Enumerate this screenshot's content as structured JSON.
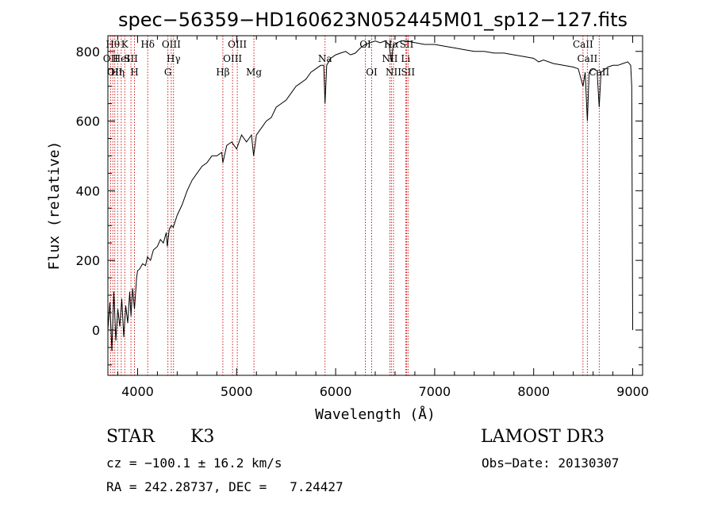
{
  "chart_data": {
    "type": "line",
    "title": "spec−56359−HD160623N052445M01_sp12−127.fits",
    "xlabel": "Wavelength (Å)",
    "ylabel": "Flux (relative)",
    "xlim": [
      3700,
      9100
    ],
    "ylim": [
      -130,
      845
    ],
    "x_ticks": [
      4000,
      5000,
      6000,
      7000,
      8000,
      9000
    ],
    "y_ticks": [
      0,
      200,
      400,
      600,
      800
    ],
    "grid": false,
    "series": [
      {
        "x": [
          3700,
          3720,
          3740,
          3760,
          3780,
          3800,
          3820,
          3840,
          3860,
          3880,
          3900,
          3920,
          3933,
          3950,
          3968,
          3990,
          4000,
          4020,
          4050,
          4080,
          4100,
          4130,
          4160,
          4200,
          4230,
          4260,
          4290,
          4300,
          4320,
          4340,
          4360,
          4400,
          4450,
          4500,
          4550,
          4600,
          4650,
          4700,
          4750,
          4800,
          4850,
          4861,
          4900,
          4950,
          5000,
          5050,
          5100,
          5150,
          5172,
          5200,
          5250,
          5300,
          5350,
          5400,
          5450,
          5500,
          5550,
          5600,
          5650,
          5700,
          5750,
          5800,
          5850,
          5880,
          5893,
          5910,
          5950,
          6000,
          6050,
          6100,
          6150,
          6200,
          6250,
          6300,
          6350,
          6400,
          6450,
          6500,
          6540,
          6563,
          6580,
          6620,
          6660,
          6700,
          6750,
          6800,
          6900,
          7000,
          7100,
          7200,
          7300,
          7400,
          7500,
          7600,
          7700,
          7800,
          7900,
          8000,
          8050,
          8100,
          8200,
          8300,
          8400,
          8450,
          8498,
          8520,
          8542,
          8560,
          8600,
          8640,
          8662,
          8680,
          8750,
          8800,
          8850,
          8900,
          8950,
          8980,
          8990,
          9000
        ],
        "y": [
          0,
          80,
          -60,
          110,
          -30,
          60,
          10,
          90,
          -20,
          70,
          20,
          110,
          40,
          120,
          60,
          150,
          170,
          175,
          190,
          185,
          210,
          200,
          230,
          240,
          260,
          250,
          280,
          240,
          290,
          300,
          295,
          330,
          360,
          400,
          430,
          450,
          470,
          480,
          500,
          500,
          510,
          480,
          530,
          540,
          520,
          560,
          540,
          560,
          500,
          560,
          580,
          600,
          610,
          640,
          650,
          660,
          680,
          700,
          710,
          720,
          740,
          750,
          760,
          760,
          650,
          760,
          780,
          790,
          795,
          800,
          790,
          795,
          810,
          820,
          825,
          830,
          825,
          830,
          820,
          770,
          815,
          825,
          830,
          830,
          828,
          825,
          820,
          820,
          815,
          810,
          805,
          800,
          800,
          795,
          795,
          790,
          785,
          780,
          770,
          775,
          765,
          760,
          755,
          750,
          700,
          740,
          600,
          740,
          750,
          745,
          640,
          740,
          755,
          760,
          760,
          765,
          770,
          760,
          700,
          0
        ]
      }
    ],
    "line_marks": [
      {
        "wl": 3727,
        "row": 1,
        "label": "OII"
      },
      {
        "wl": 3750,
        "row": 0,
        "label": "Hθ"
      },
      {
        "wl": 3770,
        "row": 2,
        "label": "OII"
      },
      {
        "wl": 3798,
        "row": 2,
        "label": "Hη"
      },
      {
        "wl": 3835,
        "row": 1,
        "label": "HeI"
      },
      {
        "wl": 3870,
        "row": 0,
        "label": "K"
      },
      {
        "wl": 3933,
        "row": 1,
        "label": "SII"
      },
      {
        "wl": 3968,
        "row": 2,
        "label": "H"
      },
      {
        "wl": 4102,
        "row": 0,
        "label": "Hδ"
      },
      {
        "wl": 4306,
        "row": 2,
        "label": "G"
      },
      {
        "wl": 4340,
        "row": 0,
        "label": "OIII"
      },
      {
        "wl": 4363,
        "row": 1,
        "label": "Hγ"
      },
      {
        "wl": 4861,
        "row": 2,
        "label": "Hβ"
      },
      {
        "wl": 4959,
        "row": 1,
        "label": "OIII"
      },
      {
        "wl": 5007,
        "row": 0,
        "label": "OIII"
      },
      {
        "wl": 5175,
        "row": 2,
        "label": "Mg"
      },
      {
        "wl": 5893,
        "row": 1,
        "label": "Na"
      },
      {
        "wl": 6300,
        "row": 0,
        "label": "OI"
      },
      {
        "wl": 6364,
        "row": 2,
        "label": "OI"
      },
      {
        "wl": 6548,
        "row": 1,
        "label": "NII"
      },
      {
        "wl": 6563,
        "row": 0,
        "label": "Hα"
      },
      {
        "wl": 6584,
        "row": 2,
        "label": "NII"
      },
      {
        "wl": 6707,
        "row": 1,
        "label": "Li"
      },
      {
        "wl": 6717,
        "row": 0,
        "label": "SII"
      },
      {
        "wl": 6731,
        "row": 2,
        "label": "SII"
      },
      {
        "wl": 8498,
        "row": 0,
        "label": "CaII"
      },
      {
        "wl": 8542,
        "row": 1,
        "label": "CaII"
      },
      {
        "wl": 8662,
        "row": 2,
        "label": "CaII"
      }
    ]
  },
  "info": {
    "object_class": "STAR",
    "subclass": "K3",
    "survey": "LAMOST DR3",
    "redshift": "cz = −100.1 ± 16.2 km/s",
    "obs_date": "Obs−Date: 20130307",
    "coords": "RA = 242.28737, DEC =   7.24427"
  }
}
